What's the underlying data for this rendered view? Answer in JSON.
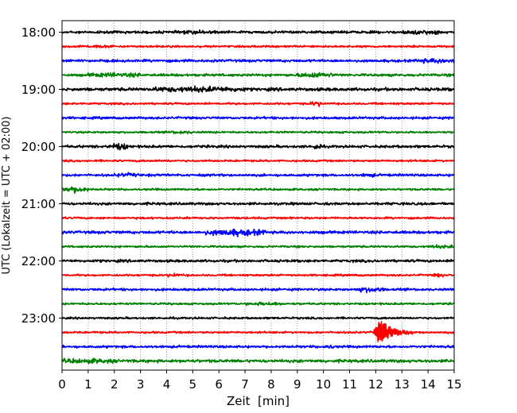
{
  "chart_data": {
    "type": "line",
    "title": "",
    "xlabel": "Zeit  [min]",
    "ylabel": "UTC (Lokalzeit = UTC + 02:00)",
    "xlim": [
      0,
      15
    ],
    "x_ticks": [
      "0",
      "1",
      "2",
      "3",
      "4",
      "5",
      "6",
      "7",
      "8",
      "9",
      "10",
      "11",
      "12",
      "13",
      "14",
      "15"
    ],
    "y_tick_labels": [
      "18:00",
      "19:00",
      "20:00",
      "21:00",
      "22:00",
      "23:00"
    ],
    "grid": "vertical dotted lines at each minute",
    "trace_spacing_min": 15,
    "trace_colors_cycle": [
      "#000000",
      "#ff0000",
      "#0000ff",
      "#008000"
    ],
    "series": [
      {
        "start": "18:00",
        "color": "#000000",
        "amp": 1.3,
        "bursts": [
          [
            4.5,
            6,
            0.8
          ],
          [
            13,
            14.5,
            1.2
          ]
        ]
      },
      {
        "start": "18:15",
        "color": "#ff0000",
        "amp": 1.0,
        "bursts": [
          [
            0.5,
            2,
            0.6
          ]
        ]
      },
      {
        "start": "18:30",
        "color": "#0000ff",
        "amp": 1.3,
        "bursts": [
          [
            13.5,
            15,
            1.3
          ]
        ]
      },
      {
        "start": "18:45",
        "color": "#008000",
        "amp": 1.3,
        "bursts": [
          [
            1,
            3,
            1.2
          ],
          [
            9,
            10.4,
            1.8
          ]
        ]
      },
      {
        "start": "19:00",
        "color": "#000000",
        "amp": 1.6,
        "bursts": [
          [
            3.5,
            7,
            1.6
          ]
        ]
      },
      {
        "start": "19:15",
        "color": "#ff0000",
        "amp": 1.0,
        "bursts": [
          [
            9.5,
            10,
            2.0
          ]
        ]
      },
      {
        "start": "19:30",
        "color": "#0000ff",
        "amp": 1.2,
        "bursts": []
      },
      {
        "start": "19:45",
        "color": "#008000",
        "amp": 1.0,
        "bursts": [
          [
            4,
            5,
            0.8
          ]
        ]
      },
      {
        "start": "20:00",
        "color": "#000000",
        "amp": 1.3,
        "bursts": [
          [
            1.8,
            2.6,
            2.4
          ],
          [
            9.6,
            9.9,
            2.4
          ]
        ]
      },
      {
        "start": "20:15",
        "color": "#ff0000",
        "amp": 1.0,
        "bursts": []
      },
      {
        "start": "20:30",
        "color": "#0000ff",
        "amp": 1.2,
        "bursts": [
          [
            2,
            3,
            1.0
          ],
          [
            11.5,
            12,
            1.0
          ]
        ]
      },
      {
        "start": "20:45",
        "color": "#008000",
        "amp": 1.0,
        "bursts": [
          [
            0,
            1,
            2.6
          ]
        ]
      },
      {
        "start": "21:00",
        "color": "#000000",
        "amp": 1.3,
        "bursts": []
      },
      {
        "start": "21:15",
        "color": "#ff0000",
        "amp": 1.0,
        "bursts": []
      },
      {
        "start": "21:30",
        "color": "#0000ff",
        "amp": 1.4,
        "bursts": [
          [
            5.5,
            7.8,
            2.4
          ]
        ]
      },
      {
        "start": "21:45",
        "color": "#008000",
        "amp": 1.0,
        "bursts": [
          [
            14,
            15,
            1.0
          ]
        ]
      },
      {
        "start": "22:00",
        "color": "#000000",
        "amp": 1.3,
        "bursts": []
      },
      {
        "start": "22:15",
        "color": "#ff0000",
        "amp": 1.0,
        "bursts": [
          [
            4,
            4.5,
            1.2
          ],
          [
            14.2,
            14.6,
            1.2
          ]
        ]
      },
      {
        "start": "22:30",
        "color": "#0000ff",
        "amp": 1.2,
        "bursts": [
          [
            11.3,
            12.3,
            2.0
          ]
        ]
      },
      {
        "start": "22:45",
        "color": "#008000",
        "amp": 1.0,
        "bursts": [
          [
            7,
            8.5,
            1.0
          ]
        ]
      },
      {
        "start": "23:00",
        "color": "#000000",
        "amp": 1.0,
        "bursts": []
      },
      {
        "start": "23:15",
        "color": "#ff0000",
        "amp": 1.0,
        "bursts": [],
        "event": {
          "onset": 11.9,
          "peak": 12.15,
          "end": 13.8,
          "amp": 14
        }
      },
      {
        "start": "23:30",
        "color": "#0000ff",
        "amp": 1.2,
        "bursts": [
          [
            10,
            10.4,
            1.0
          ]
        ]
      },
      {
        "start": "23:45",
        "color": "#008000",
        "amp": 1.5,
        "bursts": [
          [
            0,
            2,
            1.2
          ]
        ]
      }
    ]
  }
}
